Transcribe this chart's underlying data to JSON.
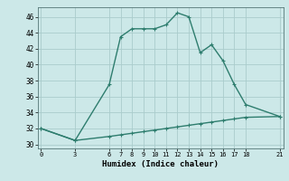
{
  "xlabel": "Humidex (Indice chaleur)",
  "line1_x": [
    0,
    3,
    6,
    7,
    8,
    9,
    10,
    11,
    12,
    13,
    14,
    15,
    16,
    17,
    18,
    21
  ],
  "line1_y": [
    32,
    30.5,
    37.5,
    43.5,
    44.5,
    44.5,
    44.5,
    45,
    46.5,
    46,
    41.5,
    42.5,
    40.5,
    37.5,
    35,
    33.5
  ],
  "line2_x": [
    0,
    3,
    6,
    7,
    8,
    9,
    10,
    11,
    12,
    13,
    14,
    15,
    16,
    17,
    18,
    21
  ],
  "line2_y": [
    32,
    30.5,
    31.0,
    31.2,
    31.4,
    31.6,
    31.8,
    32.0,
    32.2,
    32.4,
    32.6,
    32.8,
    33.0,
    33.2,
    33.4,
    33.5
  ],
  "line_color": "#2e7d6e",
  "bg_color": "#cce8e8",
  "grid_color": "#aacccc",
  "xticks": [
    0,
    3,
    6,
    7,
    8,
    9,
    10,
    11,
    12,
    13,
    14,
    15,
    16,
    17,
    18,
    21
  ],
  "yticks": [
    30,
    32,
    34,
    36,
    38,
    40,
    42,
    44,
    46
  ],
  "xlim": [
    -0.3,
    21.3
  ],
  "ylim": [
    29.5,
    47.2
  ],
  "markersize": 2.5,
  "linewidth": 1.0
}
